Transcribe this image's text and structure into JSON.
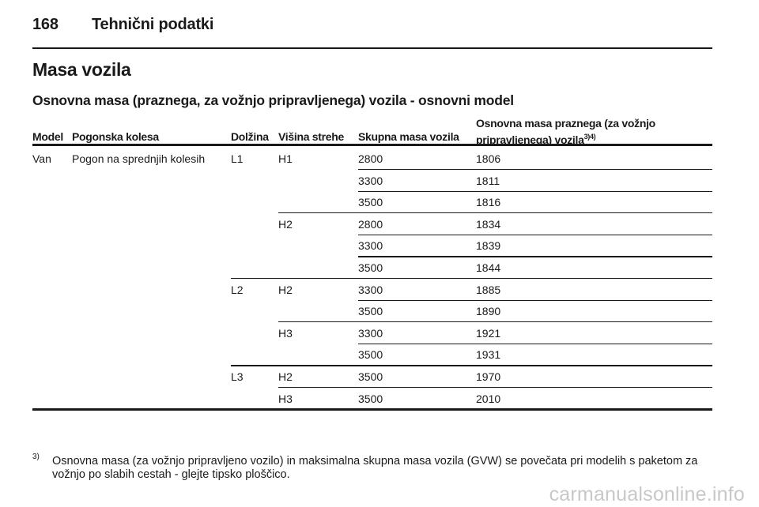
{
  "page_header": {
    "page_number": "168",
    "section_title": "Tehnični podatki"
  },
  "heading": "Masa vozila",
  "subheading": "Osnovna masa (praznega, za vožnjo pripravljenega) vozila - osnovni model",
  "table": {
    "headers": {
      "model": "Model",
      "drive": "Pogonska kolesa",
      "length": "Dolžina",
      "roof": "Višina strehe",
      "gvw": "Skupna masa vozila",
      "mass_line1": "Osnovna masa praznega (za vožnjo",
      "mass_line2": "pripravljenega) vozila",
      "mass_sup": "3)4)"
    },
    "rows": [
      {
        "model": "Van",
        "drive": "Pogon na sprednjih kolesih",
        "length": "L1",
        "roof": "H1",
        "gvw": "2800",
        "mass": "1806"
      },
      {
        "model": "",
        "drive": "",
        "length": "",
        "roof": "",
        "gvw": "3300",
        "mass": "1811"
      },
      {
        "model": "",
        "drive": "",
        "length": "",
        "roof": "",
        "gvw": "3500",
        "mass": "1816"
      },
      {
        "model": "",
        "drive": "",
        "length": "",
        "roof": "H2",
        "gvw": "2800",
        "mass": "1834"
      },
      {
        "model": "",
        "drive": "",
        "length": "",
        "roof": "",
        "gvw": "3300",
        "mass": "1839"
      },
      {
        "model": "",
        "drive": "",
        "length": "",
        "roof": "",
        "gvw": "3500",
        "mass": "1844"
      },
      {
        "model": "",
        "drive": "",
        "length": "L2",
        "roof": "H2",
        "gvw": "3300",
        "mass": "1885"
      },
      {
        "model": "",
        "drive": "",
        "length": "",
        "roof": "",
        "gvw": "3500",
        "mass": "1890"
      },
      {
        "model": "",
        "drive": "",
        "length": "",
        "roof": "H3",
        "gvw": "3300",
        "mass": "1921"
      },
      {
        "model": "",
        "drive": "",
        "length": "",
        "roof": "",
        "gvw": "3500",
        "mass": "1931"
      },
      {
        "model": "",
        "drive": "",
        "length": "L3",
        "roof": "H2",
        "gvw": "3500",
        "mass": "1970"
      },
      {
        "model": "",
        "drive": "",
        "length": "",
        "roof": "H3",
        "gvw": "3500",
        "mass": "2010"
      }
    ]
  },
  "footnote": {
    "marker": "3)",
    "text": "Osnovna masa (za vožnjo pripravljeno vozilo) in maksimalna skupna masa vozila (GVW) se povečata pri modelih s paketom za vožnjo po slabih cestah - glejte tipsko ploščico."
  },
  "watermark": "carmanualsonline.info"
}
